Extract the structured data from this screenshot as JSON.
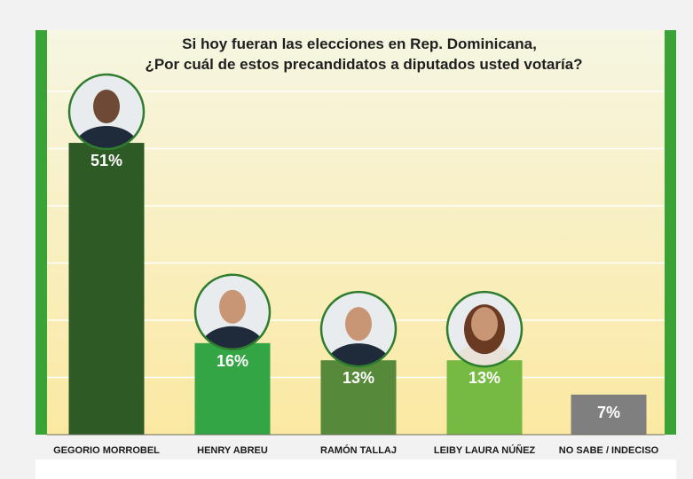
{
  "chart_data": {
    "type": "bar",
    "title_line1": "Si hoy fueran las elecciones en Rep. Dominicana,",
    "title_line2": "¿Por cuál de estos precandidatos a diputados usted votaría?",
    "categories": [
      "GEGORIO MORROBEL",
      "HENRY ABREU",
      "RAMÓN TALLAJ",
      "LEIBY LAURA NÚÑEZ",
      "NO SABE / INDECISO"
    ],
    "values": [
      51,
      16,
      13,
      13,
      7
    ],
    "value_labels": [
      "51%",
      "16%",
      "13%",
      "13%",
      "7%"
    ],
    "ylim": [
      0,
      60
    ],
    "grid": true,
    "legend": "none",
    "xlabel": "",
    "ylabel": ""
  },
  "colors": {
    "frame_green": "#3aa335",
    "bg_top": "#f6f6e2",
    "bg_bottom": "#fbe9a2",
    "grid": "#ffffff",
    "bars": [
      "#2e5a25",
      "#34a545",
      "#568a3a",
      "#76b943",
      "#7f7f7f"
    ],
    "photo_ring": "#2e7d2e"
  },
  "icons": [
    "person-photo",
    "person-photo",
    "person-photo",
    "person-photo"
  ]
}
